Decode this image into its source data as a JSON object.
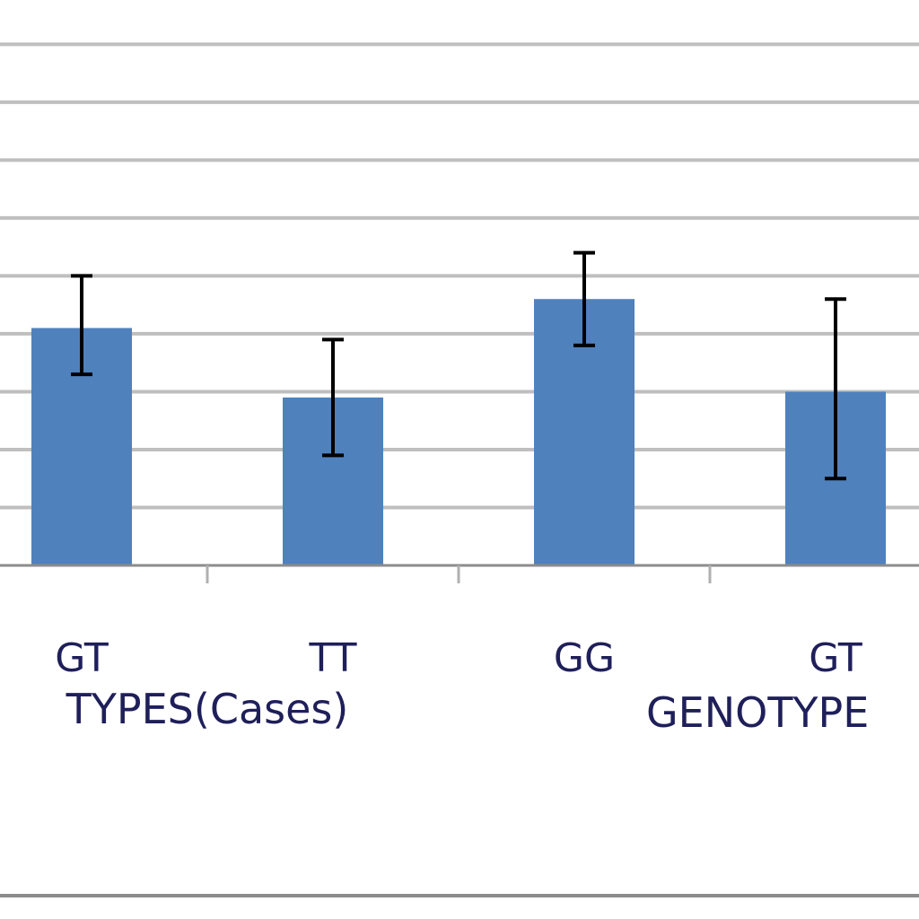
{
  "chart_data": {
    "type": "bar",
    "colors": {
      "bar": "#4f81bd",
      "grid": "#bfbfbf",
      "error_bar": "#000000",
      "text": "#1f1f5a"
    },
    "categories": [
      "GT",
      "TT",
      "GG",
      "GT"
    ],
    "groups": [
      "TYPES(Cases)",
      "GENOTYPE"
    ],
    "values": [
      4.1,
      2.9,
      4.6,
      3.0
    ],
    "error_low": [
      3.3,
      1.9,
      3.8,
      1.5
    ],
    "error_high": [
      5.0,
      3.9,
      5.4,
      4.6
    ],
    "ylim": [
      0,
      9.3
    ],
    "gridline_values": [
      1,
      2,
      3,
      4,
      5,
      6,
      7,
      8,
      9
    ],
    "grid": true,
    "title": "",
    "xlabel": "",
    "ylabel": ""
  }
}
